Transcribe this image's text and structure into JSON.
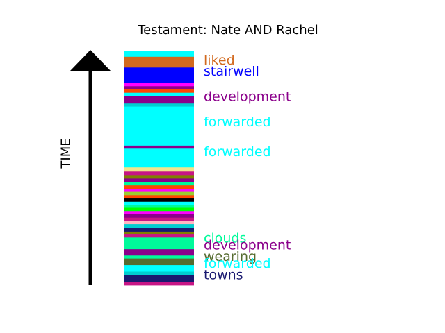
{
  "chart_data": {
    "type": "bar",
    "title": "Testament: Nate AND Rachel",
    "ylabel": "TIME",
    "ylim": [
      0,
      1
    ],
    "segments": [
      {
        "start": 0.0,
        "end": 0.014,
        "color": "#c71585"
      },
      {
        "start": 0.014,
        "end": 0.045,
        "color": "#191970"
      },
      {
        "start": 0.045,
        "end": 0.059,
        "color": "#00ced1"
      },
      {
        "start": 0.059,
        "end": 0.087,
        "color": "#00ffff"
      },
      {
        "start": 0.087,
        "end": 0.115,
        "color": "#556b2f"
      },
      {
        "start": 0.115,
        "end": 0.128,
        "color": "#00fa9a"
      },
      {
        "start": 0.128,
        "end": 0.155,
        "color": "#8b008b"
      },
      {
        "start": 0.155,
        "end": 0.205,
        "color": "#00fa9a"
      },
      {
        "start": 0.205,
        "end": 0.218,
        "color": "#c71585"
      },
      {
        "start": 0.218,
        "end": 0.23,
        "color": "#808000"
      },
      {
        "start": 0.23,
        "end": 0.246,
        "color": "#191970"
      },
      {
        "start": 0.246,
        "end": 0.262,
        "color": "#00ced1"
      },
      {
        "start": 0.262,
        "end": 0.275,
        "color": "#ffb6c1"
      },
      {
        "start": 0.275,
        "end": 0.29,
        "color": "#c71585"
      },
      {
        "start": 0.29,
        "end": 0.305,
        "color": "#8b008b"
      },
      {
        "start": 0.305,
        "end": 0.318,
        "color": "#ff00ff"
      },
      {
        "start": 0.318,
        "end": 0.332,
        "color": "#00ff00"
      },
      {
        "start": 0.332,
        "end": 0.345,
        "color": "#00fa9a"
      },
      {
        "start": 0.345,
        "end": 0.358,
        "color": "#00ffff"
      },
      {
        "start": 0.358,
        "end": 0.372,
        "color": "#000000"
      },
      {
        "start": 0.372,
        "end": 0.386,
        "color": "#ff4500"
      },
      {
        "start": 0.386,
        "end": 0.4,
        "color": "#9acd32"
      },
      {
        "start": 0.4,
        "end": 0.413,
        "color": "#ff00ff"
      },
      {
        "start": 0.413,
        "end": 0.428,
        "color": "#ff4500"
      },
      {
        "start": 0.428,
        "end": 0.442,
        "color": "#00fa9a"
      },
      {
        "start": 0.442,
        "end": 0.457,
        "color": "#8b008b"
      },
      {
        "start": 0.457,
        "end": 0.472,
        "color": "#808000"
      },
      {
        "start": 0.472,
        "end": 0.487,
        "color": "#c71585"
      },
      {
        "start": 0.487,
        "end": 0.505,
        "color": "#f0e68c"
      },
      {
        "start": 0.505,
        "end": 0.585,
        "color": "#00ffff"
      },
      {
        "start": 0.585,
        "end": 0.598,
        "color": "#8b008b"
      },
      {
        "start": 0.598,
        "end": 0.765,
        "color": "#00ffff"
      },
      {
        "start": 0.765,
        "end": 0.778,
        "color": "#00ced1"
      },
      {
        "start": 0.778,
        "end": 0.81,
        "color": "#8b008b"
      },
      {
        "start": 0.81,
        "end": 0.824,
        "color": "#00ffff"
      },
      {
        "start": 0.824,
        "end": 0.838,
        "color": "#ff4500"
      },
      {
        "start": 0.838,
        "end": 0.852,
        "color": "#8b008b"
      },
      {
        "start": 0.852,
        "end": 0.866,
        "color": "#ff00ff"
      },
      {
        "start": 0.866,
        "end": 0.88,
        "color": "#0000ff"
      },
      {
        "start": 0.88,
        "end": 0.932,
        "color": "#0000ff"
      },
      {
        "start": 0.932,
        "end": 0.978,
        "color": "#d2691e"
      },
      {
        "start": 0.978,
        "end": 1.0,
        "color": "#00ffff"
      }
    ],
    "annotations": [
      {
        "text": "liked",
        "time": 0.962,
        "color": "#d2691e"
      },
      {
        "text": "stairwell",
        "time": 0.914,
        "color": "#0000ff"
      },
      {
        "text": "development",
        "time": 0.806,
        "color": "#8b008b"
      },
      {
        "text": "forwarded",
        "time": 0.697,
        "color": "#00ffff"
      },
      {
        "text": "forwarded",
        "time": 0.57,
        "color": "#00ffff"
      },
      {
        "text": "clouds",
        "time": 0.2,
        "color": "#00fa9a"
      },
      {
        "text": "development",
        "time": 0.17,
        "color": "#8b008b"
      },
      {
        "text": "wearing",
        "time": 0.122,
        "color": "#556b2f"
      },
      {
        "text": "forwarded",
        "time": 0.092,
        "color": "#00ffff"
      },
      {
        "text": "towns",
        "time": 0.043,
        "color": "#191970"
      }
    ],
    "axis_color": "#000000"
  }
}
